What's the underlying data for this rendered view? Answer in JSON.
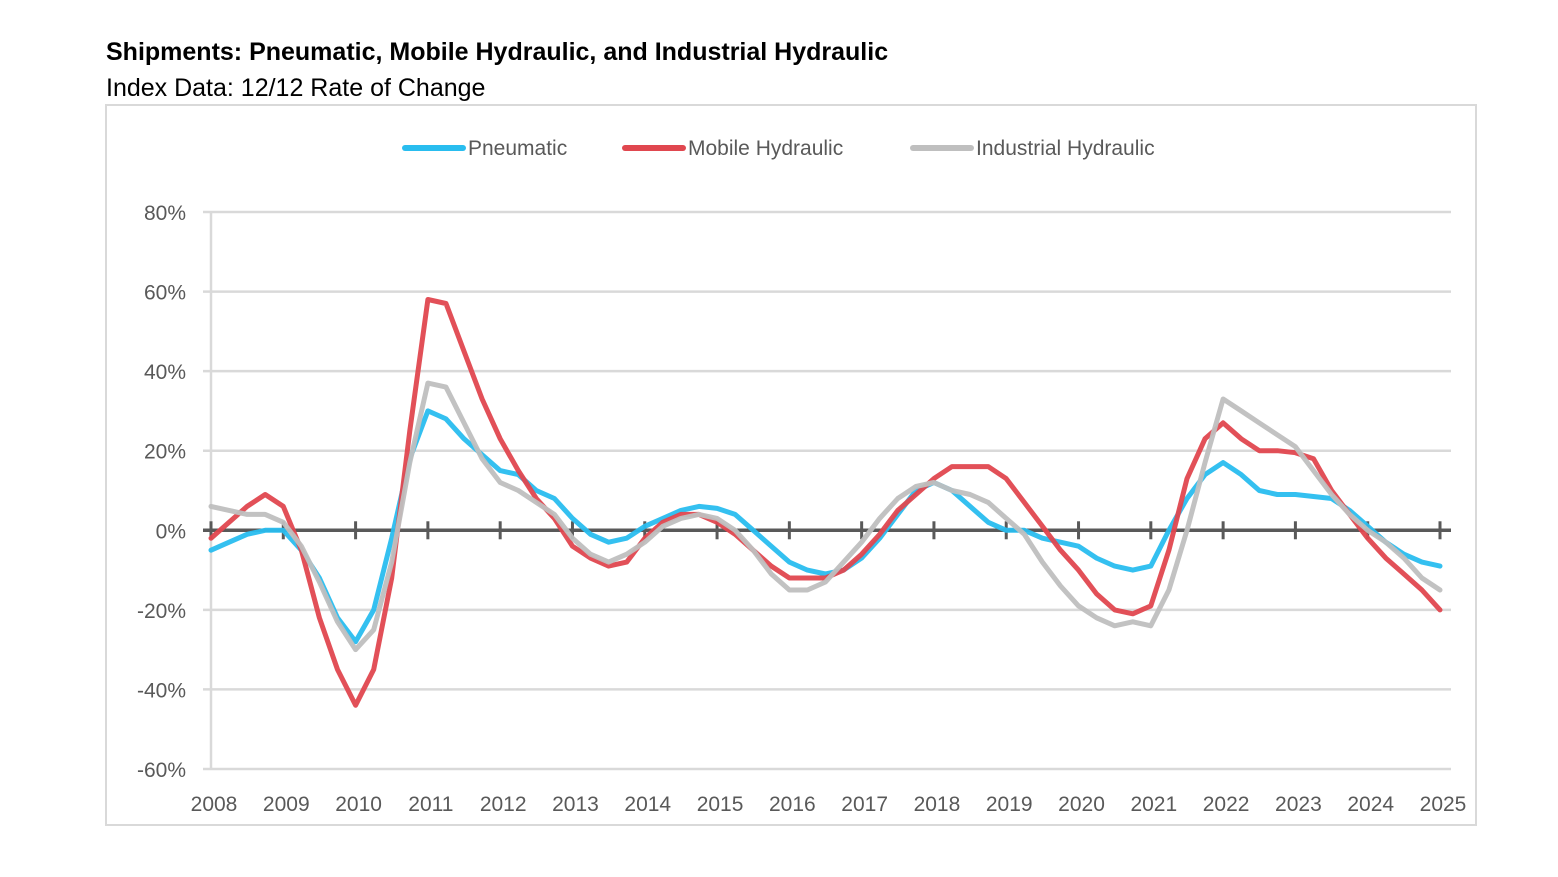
{
  "chart_data": {
    "type": "line",
    "title": "Shipments: Pneumatic, Mobile Hydraulic, and Industrial Hydraulic",
    "subtitle": "Index Data: 12/12 Rate of Change",
    "xlabel": "",
    "ylabel": "",
    "xlim": [
      2008,
      2025
    ],
    "ylim": [
      -60,
      80
    ],
    "grid": true,
    "legend_position": "top",
    "x_ticks": [
      "2008",
      "2009",
      "2010",
      "2011",
      "2012",
      "2013",
      "2014",
      "2015",
      "2016",
      "2017",
      "2018",
      "2019",
      "2020",
      "2021",
      "2022",
      "2023",
      "2024",
      "2025"
    ],
    "y_ticks": [
      {
        "value": 80,
        "label": "80%"
      },
      {
        "value": 60,
        "label": "60%"
      },
      {
        "value": 40,
        "label": "40%"
      },
      {
        "value": 20,
        "label": "20%"
      },
      {
        "value": 0,
        "label": "0%"
      },
      {
        "value": -20,
        "label": "-20%"
      },
      {
        "value": -40,
        "label": "-40%"
      },
      {
        "value": -60,
        "label": "-60%"
      }
    ],
    "x_start": 2008,
    "x_step": 0.25,
    "series": [
      {
        "name": "Pneumatic",
        "color": "#29bdef",
        "values": [
          -5,
          -3,
          -1,
          0,
          0,
          -5,
          -12,
          -22,
          -28,
          -20,
          -2,
          18,
          30,
          28,
          23,
          19,
          15,
          14,
          10,
          8,
          3,
          -1,
          -3,
          -2,
          1,
          3,
          5,
          6,
          5.5,
          4,
          0,
          -4,
          -8,
          -10,
          -11,
          -10,
          -7,
          -2,
          4,
          10,
          12,
          10,
          6,
          2,
          0,
          0,
          -2,
          -3,
          -4,
          -7,
          -9,
          -10,
          -9,
          0,
          8,
          14,
          17,
          14,
          10,
          9,
          9,
          8.5,
          8,
          5,
          1,
          -3,
          -6,
          -8,
          -9
        ]
      },
      {
        "name": "Mobile Hydraulic",
        "color": "#e0474f",
        "values": [
          -2,
          2,
          6,
          9,
          6,
          -5,
          -22,
          -35,
          -44,
          -35,
          -12,
          25,
          58,
          57,
          45,
          33,
          23,
          15,
          8,
          3,
          -4,
          -7,
          -9,
          -8,
          -2,
          2,
          4,
          4,
          2,
          -1,
          -5,
          -9,
          -12,
          -12,
          -12,
          -10,
          -6,
          -1,
          5,
          9,
          13,
          16,
          16,
          16,
          13,
          7,
          1,
          -5,
          -10,
          -16,
          -20,
          -21,
          -19,
          -5,
          13,
          23,
          27,
          23,
          20,
          20,
          19.5,
          18,
          10,
          4,
          -2,
          -7,
          -11,
          -15,
          -20
        ]
      },
      {
        "name": "Industrial Hydraulic",
        "color": "#bfbfbf",
        "values": [
          6,
          5,
          4,
          4,
          2,
          -4,
          -13,
          -23,
          -30,
          -25,
          -8,
          17,
          37,
          36,
          27,
          18,
          12,
          10,
          7,
          4,
          -2,
          -6,
          -8,
          -6,
          -3,
          1,
          3,
          4,
          3,
          0,
          -5,
          -11,
          -15,
          -15,
          -13,
          -8,
          -3,
          3,
          8,
          11,
          12,
          10,
          9,
          7,
          3,
          -1,
          -8,
          -14,
          -19,
          -22,
          -24,
          -23,
          -24,
          -15,
          0,
          17,
          33,
          30,
          27,
          24,
          21,
          15,
          9,
          4,
          0,
          -3,
          -7,
          -12,
          -15
        ]
      }
    ]
  }
}
